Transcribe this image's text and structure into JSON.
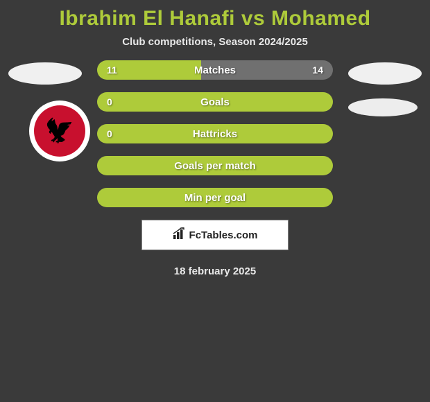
{
  "title": {
    "text": "Ibrahim El Hanafi vs Mohamed",
    "color": "#aecb3a"
  },
  "subtitle": "Club competitions, Season 2024/2025",
  "date": "18 february 2025",
  "watermark": {
    "icon": "bar-chart-icon",
    "text": "FcTables.com"
  },
  "colors": {
    "background": "#3a3a3a",
    "player_left": "#aecb3a",
    "player_right": "#707070",
    "text_light": "#e8e8e8"
  },
  "club_left": {
    "name": "Al Ahly",
    "primary_color": "#c8102e"
  },
  "rows": [
    {
      "label": "Matches",
      "left_value": "11",
      "right_value": "14",
      "left_pct": 44,
      "right_pct": 56,
      "show_left": true,
      "show_right": true
    },
    {
      "label": "Goals",
      "left_value": "0",
      "right_value": "",
      "left_pct": 100,
      "right_pct": 0,
      "show_left": true,
      "show_right": false
    },
    {
      "label": "Hattricks",
      "left_value": "0",
      "right_value": "",
      "left_pct": 100,
      "right_pct": 0,
      "show_left": true,
      "show_right": false
    },
    {
      "label": "Goals per match",
      "left_value": "",
      "right_value": "",
      "left_pct": 100,
      "right_pct": 0,
      "show_left": false,
      "show_right": false
    },
    {
      "label": "Min per goal",
      "left_value": "",
      "right_value": "",
      "left_pct": 100,
      "right_pct": 0,
      "show_left": false,
      "show_right": false
    }
  ]
}
